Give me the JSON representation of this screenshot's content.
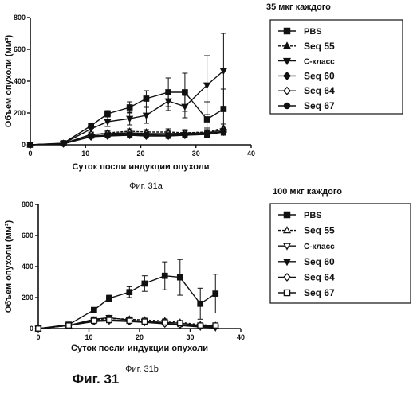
{
  "figure": {
    "caption": "Фиг. 31"
  },
  "chart_data": [
    {
      "type": "line",
      "panel_caption": "Фиг. 31a",
      "dose_label": "35 мкг каждого",
      "xlabel": "Суток посли индукции опухоли",
      "ylabel": "Объем опухоли (мм³)",
      "xlim": [
        0,
        40
      ],
      "ylim": [
        0,
        800
      ],
      "xticks": [
        "0",
        "10",
        "20",
        "30",
        "40"
      ],
      "yticks": [
        "0",
        "200",
        "400",
        "600",
        "800"
      ],
      "grid": false,
      "legend_position": "right",
      "series": [
        {
          "name": "PBS",
          "marker": "square",
          "x": [
            0,
            6,
            11,
            14,
            18,
            21,
            25,
            28,
            32,
            35
          ],
          "y": [
            0,
            10,
            120,
            195,
            235,
            290,
            330,
            330,
            160,
            225
          ],
          "err": [
            0,
            4,
            15,
            20,
            35,
            50,
            90,
            120,
            110,
            125
          ]
        },
        {
          "name": "Seq 55",
          "marker": "triangle-up",
          "x": [
            0,
            6,
            11,
            14,
            18,
            21,
            25,
            28,
            32,
            35
          ],
          "y": [
            0,
            8,
            60,
            75,
            85,
            80,
            80,
            75,
            80,
            105
          ],
          "err": [
            0,
            3,
            12,
            15,
            15,
            15,
            20,
            20,
            25,
            25
          ]
        },
        {
          "name": "С-класс",
          "marker": "triangle-down",
          "x": [
            0,
            6,
            11,
            14,
            18,
            21,
            25,
            28,
            32,
            35
          ],
          "y": [
            0,
            8,
            100,
            145,
            165,
            185,
            275,
            240,
            375,
            465
          ],
          "err": [
            0,
            4,
            20,
            30,
            40,
            50,
            60,
            70,
            185,
            235
          ]
        },
        {
          "name": "Seq 60",
          "marker": "diamond",
          "x": [
            0,
            6,
            11,
            14,
            18,
            21,
            25,
            28,
            32,
            35
          ],
          "y": [
            0,
            6,
            50,
            55,
            60,
            55,
            55,
            60,
            65,
            80
          ],
          "err": [
            0,
            3,
            10,
            12,
            12,
            12,
            15,
            15,
            18,
            20
          ]
        },
        {
          "name": "Seq 64",
          "marker": "diamond-open",
          "x": [
            0,
            6,
            11,
            14,
            18,
            21,
            25,
            28,
            32,
            35
          ],
          "y": [
            0,
            7,
            65,
            70,
            75,
            70,
            70,
            72,
            75,
            95
          ],
          "err": [
            0,
            3,
            12,
            14,
            14,
            14,
            16,
            16,
            20,
            22
          ]
        },
        {
          "name": "Seq 67",
          "marker": "circle",
          "x": [
            0,
            6,
            11,
            14,
            18,
            21,
            25,
            28,
            32,
            35
          ],
          "y": [
            0,
            6,
            55,
            60,
            65,
            62,
            60,
            65,
            70,
            85
          ],
          "err": [
            0,
            3,
            10,
            12,
            12,
            12,
            14,
            14,
            18,
            20
          ]
        }
      ]
    },
    {
      "type": "line",
      "panel_caption": "Фиг. 31b",
      "dose_label": "100 мкг каждого",
      "xlabel": "Суток посли индукции опухоли",
      "ylabel": "Объем опухоли (мм³)",
      "xlim": [
        0,
        40
      ],
      "ylim": [
        0,
        800
      ],
      "xticks": [
        "0",
        "10",
        "20",
        "30",
        "40"
      ],
      "yticks": [
        "0",
        "200",
        "400",
        "600",
        "800"
      ],
      "grid": false,
      "legend_position": "right",
      "series": [
        {
          "name": "PBS",
          "marker": "square",
          "x": [
            0,
            6,
            11,
            14,
            18,
            21,
            25,
            28,
            32,
            35
          ],
          "y": [
            0,
            25,
            120,
            195,
            235,
            290,
            340,
            330,
            160,
            225
          ],
          "err": [
            0,
            5,
            15,
            20,
            35,
            50,
            90,
            115,
            100,
            125
          ]
        },
        {
          "name": "Seq 55",
          "marker": "triangle-up-open",
          "x": [
            0,
            6,
            11,
            14,
            18,
            21,
            25,
            28,
            32,
            35
          ],
          "y": [
            0,
            20,
            55,
            65,
            60,
            55,
            50,
            40,
            25,
            20
          ],
          "err": [
            0,
            5,
            12,
            15,
            15,
            12,
            12,
            10,
            8,
            8
          ]
        },
        {
          "name": "С-класс",
          "marker": "triangle-down-open",
          "x": [
            0,
            6,
            11,
            14,
            18,
            21,
            25,
            28,
            32,
            35
          ],
          "y": [
            0,
            20,
            50,
            55,
            50,
            45,
            35,
            25,
            15,
            10
          ],
          "err": [
            0,
            5,
            10,
            12,
            12,
            10,
            10,
            8,
            6,
            5
          ]
        },
        {
          "name": "Seq 60",
          "marker": "triangle-down",
          "x": [
            0,
            6,
            11,
            14,
            18,
            21,
            25,
            28,
            32,
            35
          ],
          "y": [
            0,
            20,
            60,
            70,
            55,
            45,
            35,
            20,
            10,
            5
          ],
          "err": [
            0,
            5,
            12,
            15,
            12,
            10,
            10,
            8,
            5,
            4
          ]
        },
        {
          "name": "Seq 64",
          "marker": "diamond-open",
          "x": [
            0,
            6,
            11,
            14,
            18,
            21,
            25,
            28,
            32,
            35
          ],
          "y": [
            0,
            20,
            45,
            50,
            45,
            40,
            30,
            25,
            15,
            15
          ],
          "err": [
            0,
            5,
            10,
            12,
            10,
            10,
            8,
            8,
            6,
            6
          ]
        },
        {
          "name": "Seq 67",
          "marker": "square-open",
          "x": [
            0,
            6,
            11,
            14,
            18,
            21,
            25,
            28,
            32,
            35
          ],
          "y": [
            0,
            20,
            50,
            55,
            50,
            45,
            40,
            35,
            20,
            20
          ],
          "err": [
            0,
            5,
            10,
            12,
            12,
            10,
            10,
            8,
            8,
            8
          ]
        }
      ]
    }
  ]
}
